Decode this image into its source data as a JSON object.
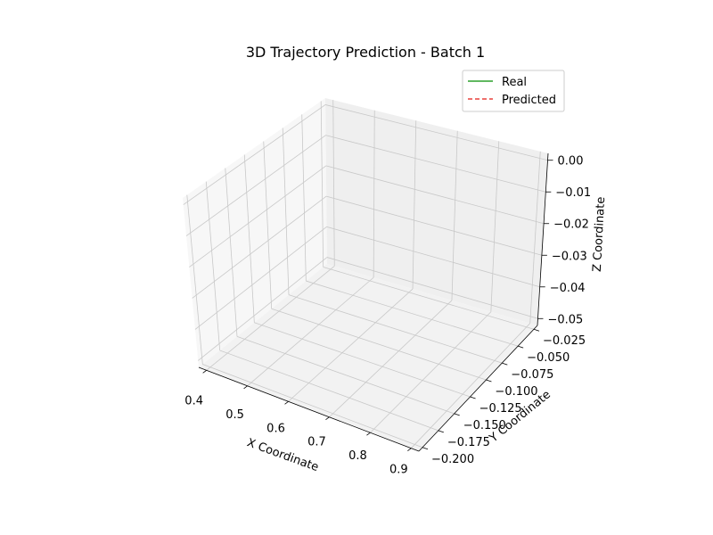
{
  "chart_data": {
    "type": "line",
    "projection": "3d",
    "title": "3D Trajectory Prediction - Batch 1",
    "xlabel": "X Coordinate",
    "ylabel": "Y Coordinate",
    "zlabel": "Z Coordinate",
    "xlim": [
      0.4,
      0.9
    ],
    "ylim": [
      -0.2,
      -0.025
    ],
    "zlim": [
      -0.05,
      0.0
    ],
    "x_ticks": [
      "0.4",
      "0.5",
      "0.6",
      "0.7",
      "0.8",
      "0.9"
    ],
    "y_ticks": [
      "−0.200",
      "−0.175",
      "−0.150",
      "−0.125",
      "−0.100",
      "−0.075",
      "−0.050",
      "−0.025"
    ],
    "z_ticks": [
      "−0.05",
      "−0.04",
      "−0.03",
      "−0.02",
      "−0.01",
      "0.00"
    ],
    "grid": true,
    "legend_position": "top-right",
    "series": [
      {
        "name": "Real",
        "color": "#2ca02c",
        "linestyle": "solid",
        "x": [],
        "y": [],
        "z": []
      },
      {
        "name": "Predicted",
        "color": "#e8413c",
        "linestyle": "dashed",
        "x": [],
        "y": [],
        "z": []
      }
    ]
  }
}
